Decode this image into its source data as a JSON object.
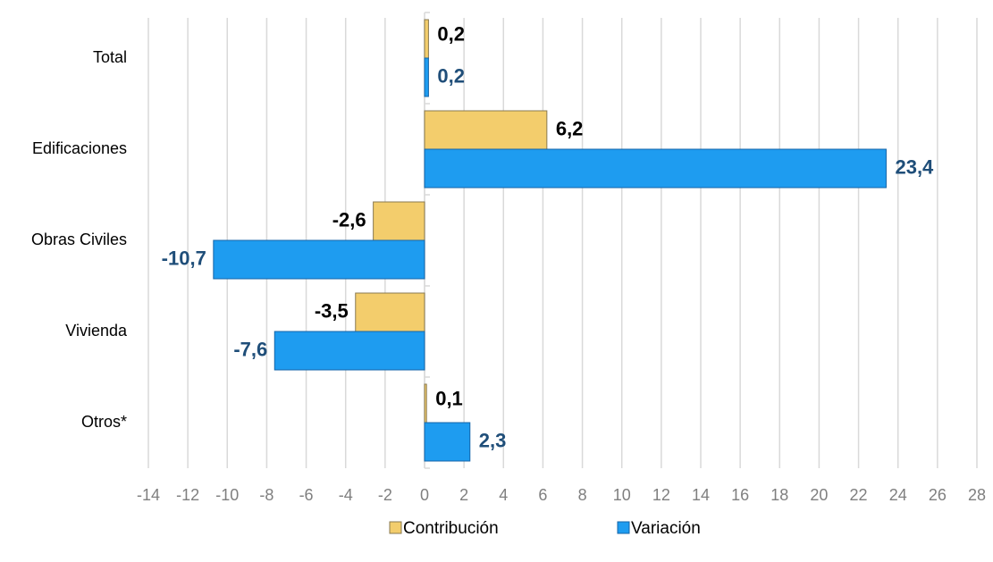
{
  "chart_data": {
    "type": "hbar",
    "categories": [
      "Total",
      "Edificaciones",
      "Obras Civiles",
      "Vivienda",
      "Otros*"
    ],
    "series": [
      {
        "name": "Contribución",
        "color": "#f3cd6c",
        "label_color": "#000000",
        "values": [
          0.2,
          6.2,
          -2.6,
          -3.5,
          0.1
        ],
        "value_labels": [
          "0,2",
          "6,2",
          "-2,6",
          "-3,5",
          "0,1"
        ]
      },
      {
        "name": "Variación",
        "color": "#1e9cf0",
        "label_color": "#1f4e79",
        "values": [
          0.2,
          23.4,
          -10.7,
          -7.6,
          2.3
        ],
        "value_labels": [
          "0,2",
          "23,4",
          "-10,7",
          "-7,6",
          "2,3"
        ]
      }
    ],
    "xlim": [
      -14,
      28
    ],
    "xticks": [
      -14,
      -12,
      -10,
      -8,
      -6,
      -4,
      -2,
      0,
      2,
      4,
      6,
      8,
      10,
      12,
      14,
      16,
      18,
      20,
      22,
      24,
      26,
      28
    ],
    "grid": true,
    "legend": "bottom"
  }
}
